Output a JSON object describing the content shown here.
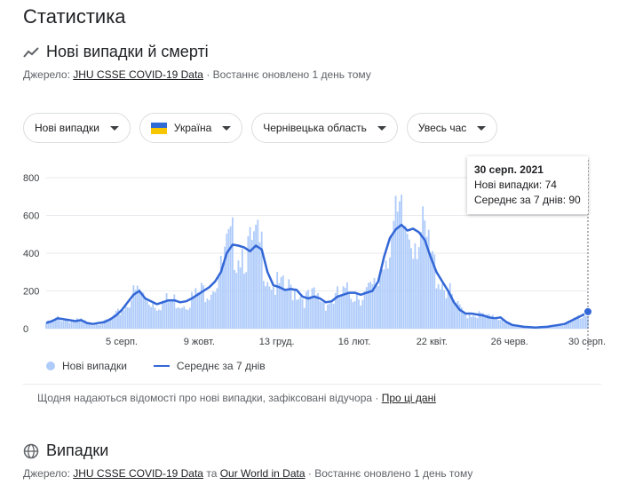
{
  "page": {
    "title": "Статистика"
  },
  "section1": {
    "title": "Нові випадки й смерті",
    "source_prefix": "Джерело:",
    "source_link": "JHU CSSE COVID-19 Data",
    "updated": "· Востаннє оновлено 1 день тому"
  },
  "filters": {
    "metric": "Нові випадки",
    "country": "Україна",
    "region": "Чернівецька область",
    "period": "Увесь час"
  },
  "tooltip": {
    "date": "30 серп. 2021",
    "new_cases": "Нові випадки: 74",
    "avg": "Середнє за 7 днів: 90"
  },
  "legend": {
    "bars": "Нові випадки",
    "line": "Середнє за 7 днів"
  },
  "note": {
    "text": "Щодня надаються відомості про нові випадки, зафіксовані відучора  ·",
    "link": "Про ці дані"
  },
  "section2": {
    "title": "Випадки",
    "source_prefix": "Джерело:",
    "link1": "JHU CSSE COVID-19 Data",
    "mid": "та",
    "link2": "Our World in Data",
    "updated": "· Востаннє оновлено 1 день тому"
  },
  "colors": {
    "bar": "#aecbfa",
    "line": "#3367d6",
    "grid": "#e8eaed"
  },
  "chart_data": {
    "type": "area",
    "y_ticks": [
      "0",
      "200",
      "400",
      "600",
      "800"
    ],
    "ylim": [
      0,
      850
    ],
    "x_labels": [
      "5 серп.",
      "9 жовт.",
      "13 груд.",
      "16 лют.",
      "22 квіт.",
      "26 черв.",
      "30 серп."
    ],
    "series": [
      {
        "name": "Середнє за 7 днів",
        "values": [
          30,
          40,
          55,
          50,
          45,
          40,
          45,
          30,
          25,
          30,
          35,
          50,
          70,
          100,
          140,
          180,
          200,
          160,
          145,
          130,
          140,
          150,
          150,
          140,
          145,
          160,
          180,
          200,
          220,
          250,
          300,
          400,
          445,
          440,
          430,
          410,
          440,
          420,
          300,
          230,
          220,
          205,
          210,
          205,
          170,
          160,
          170,
          160,
          140,
          145,
          170,
          180,
          190,
          190,
          180,
          190,
          200,
          250,
          380,
          480,
          525,
          550,
          520,
          530,
          510,
          470,
          380,
          300,
          250,
          200,
          140,
          100,
          80,
          80,
          75,
          70,
          60,
          55,
          60,
          35,
          20,
          15,
          10,
          8,
          6,
          8,
          10,
          15,
          20,
          25,
          40,
          55,
          70,
          90
        ]
      }
    ],
    "highlight": {
      "date": "30 серп. 2021",
      "new_cases": 74,
      "avg": 90
    }
  }
}
